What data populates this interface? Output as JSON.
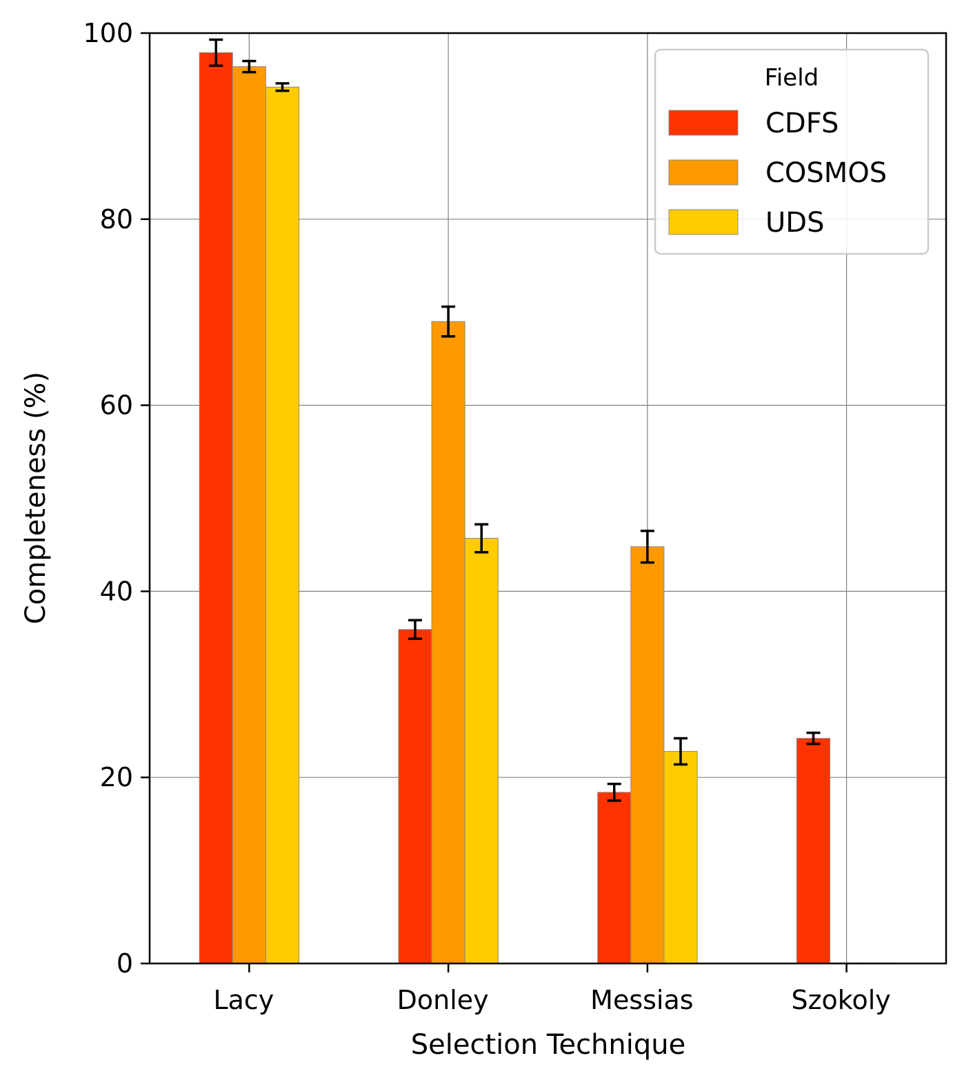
{
  "chart_data": {
    "type": "bar",
    "title": "",
    "xlabel": "Selection Technique",
    "ylabel": "Completeness (%)",
    "categories": [
      "Lacy",
      "Donley",
      "Messias",
      "Szokoly"
    ],
    "ylim": [
      0,
      100
    ],
    "yticks": [
      0,
      20,
      40,
      60,
      80,
      100
    ],
    "grid": true,
    "legend": {
      "title": "Field",
      "position": "top-right"
    },
    "series": [
      {
        "name": "CDFS",
        "color": "#ff3300",
        "values": [
          97.9,
          35.9,
          18.4,
          24.2
        ],
        "errors": [
          1.4,
          1.0,
          0.9,
          0.6
        ]
      },
      {
        "name": "COSMOS",
        "color": "#ff9900",
        "values": [
          96.4,
          69.0,
          44.8,
          0
        ],
        "errors": [
          0.6,
          1.6,
          1.7,
          0
        ]
      },
      {
        "name": "UDS",
        "color": "#ffcc00",
        "values": [
          94.2,
          45.7,
          22.8,
          0
        ],
        "errors": [
          0.4,
          1.5,
          1.4,
          0
        ]
      }
    ]
  }
}
